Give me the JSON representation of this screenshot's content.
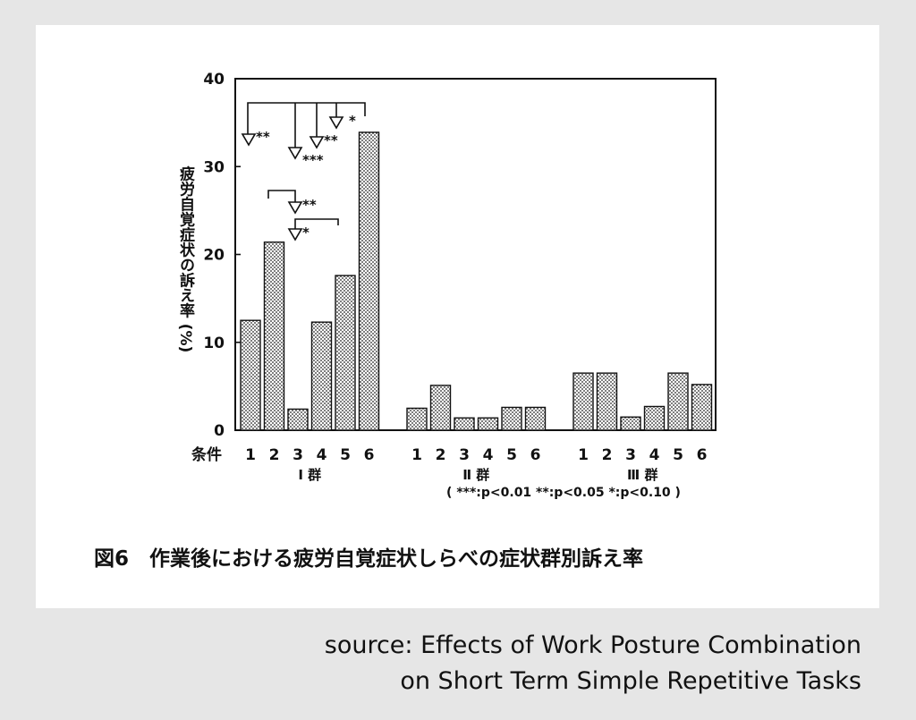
{
  "chart_data": {
    "type": "bar",
    "title": "図6　作業後における疲労自覚症状しらべの症状群別訴え率",
    "y_label": "疲労自覚症状の訴え率 (%)",
    "x_label": "条件",
    "categories": [
      "1",
      "2",
      "3",
      "4",
      "5",
      "6",
      "1",
      "2",
      "3",
      "4",
      "5",
      "6",
      "1",
      "2",
      "3",
      "4",
      "5",
      "6"
    ],
    "values": [
      12.5,
      21.4,
      2.4,
      12.3,
      17.6,
      33.9,
      2.5,
      5.1,
      1.4,
      1.4,
      2.6,
      2.6,
      6.5,
      6.5,
      1.5,
      2.7,
      6.5,
      5.2
    ],
    "group_labels": [
      "Ⅰ 群",
      "Ⅱ 群",
      "Ⅲ 群"
    ],
    "color": "#222222",
    "ylim": [
      0,
      40
    ],
    "yticks": [
      0,
      10,
      20,
      30,
      40
    ],
    "grid": false,
    "annotations": [
      "**",
      "***",
      "**",
      "*",
      "**",
      "*"
    ],
    "note": "( ***:p<0.01  **:p<0.05  *:p<0.10 )"
  },
  "source": [
    "source: Effects of Work Posture Combination",
    "on Short Term Simple Repetitive Tasks"
  ]
}
